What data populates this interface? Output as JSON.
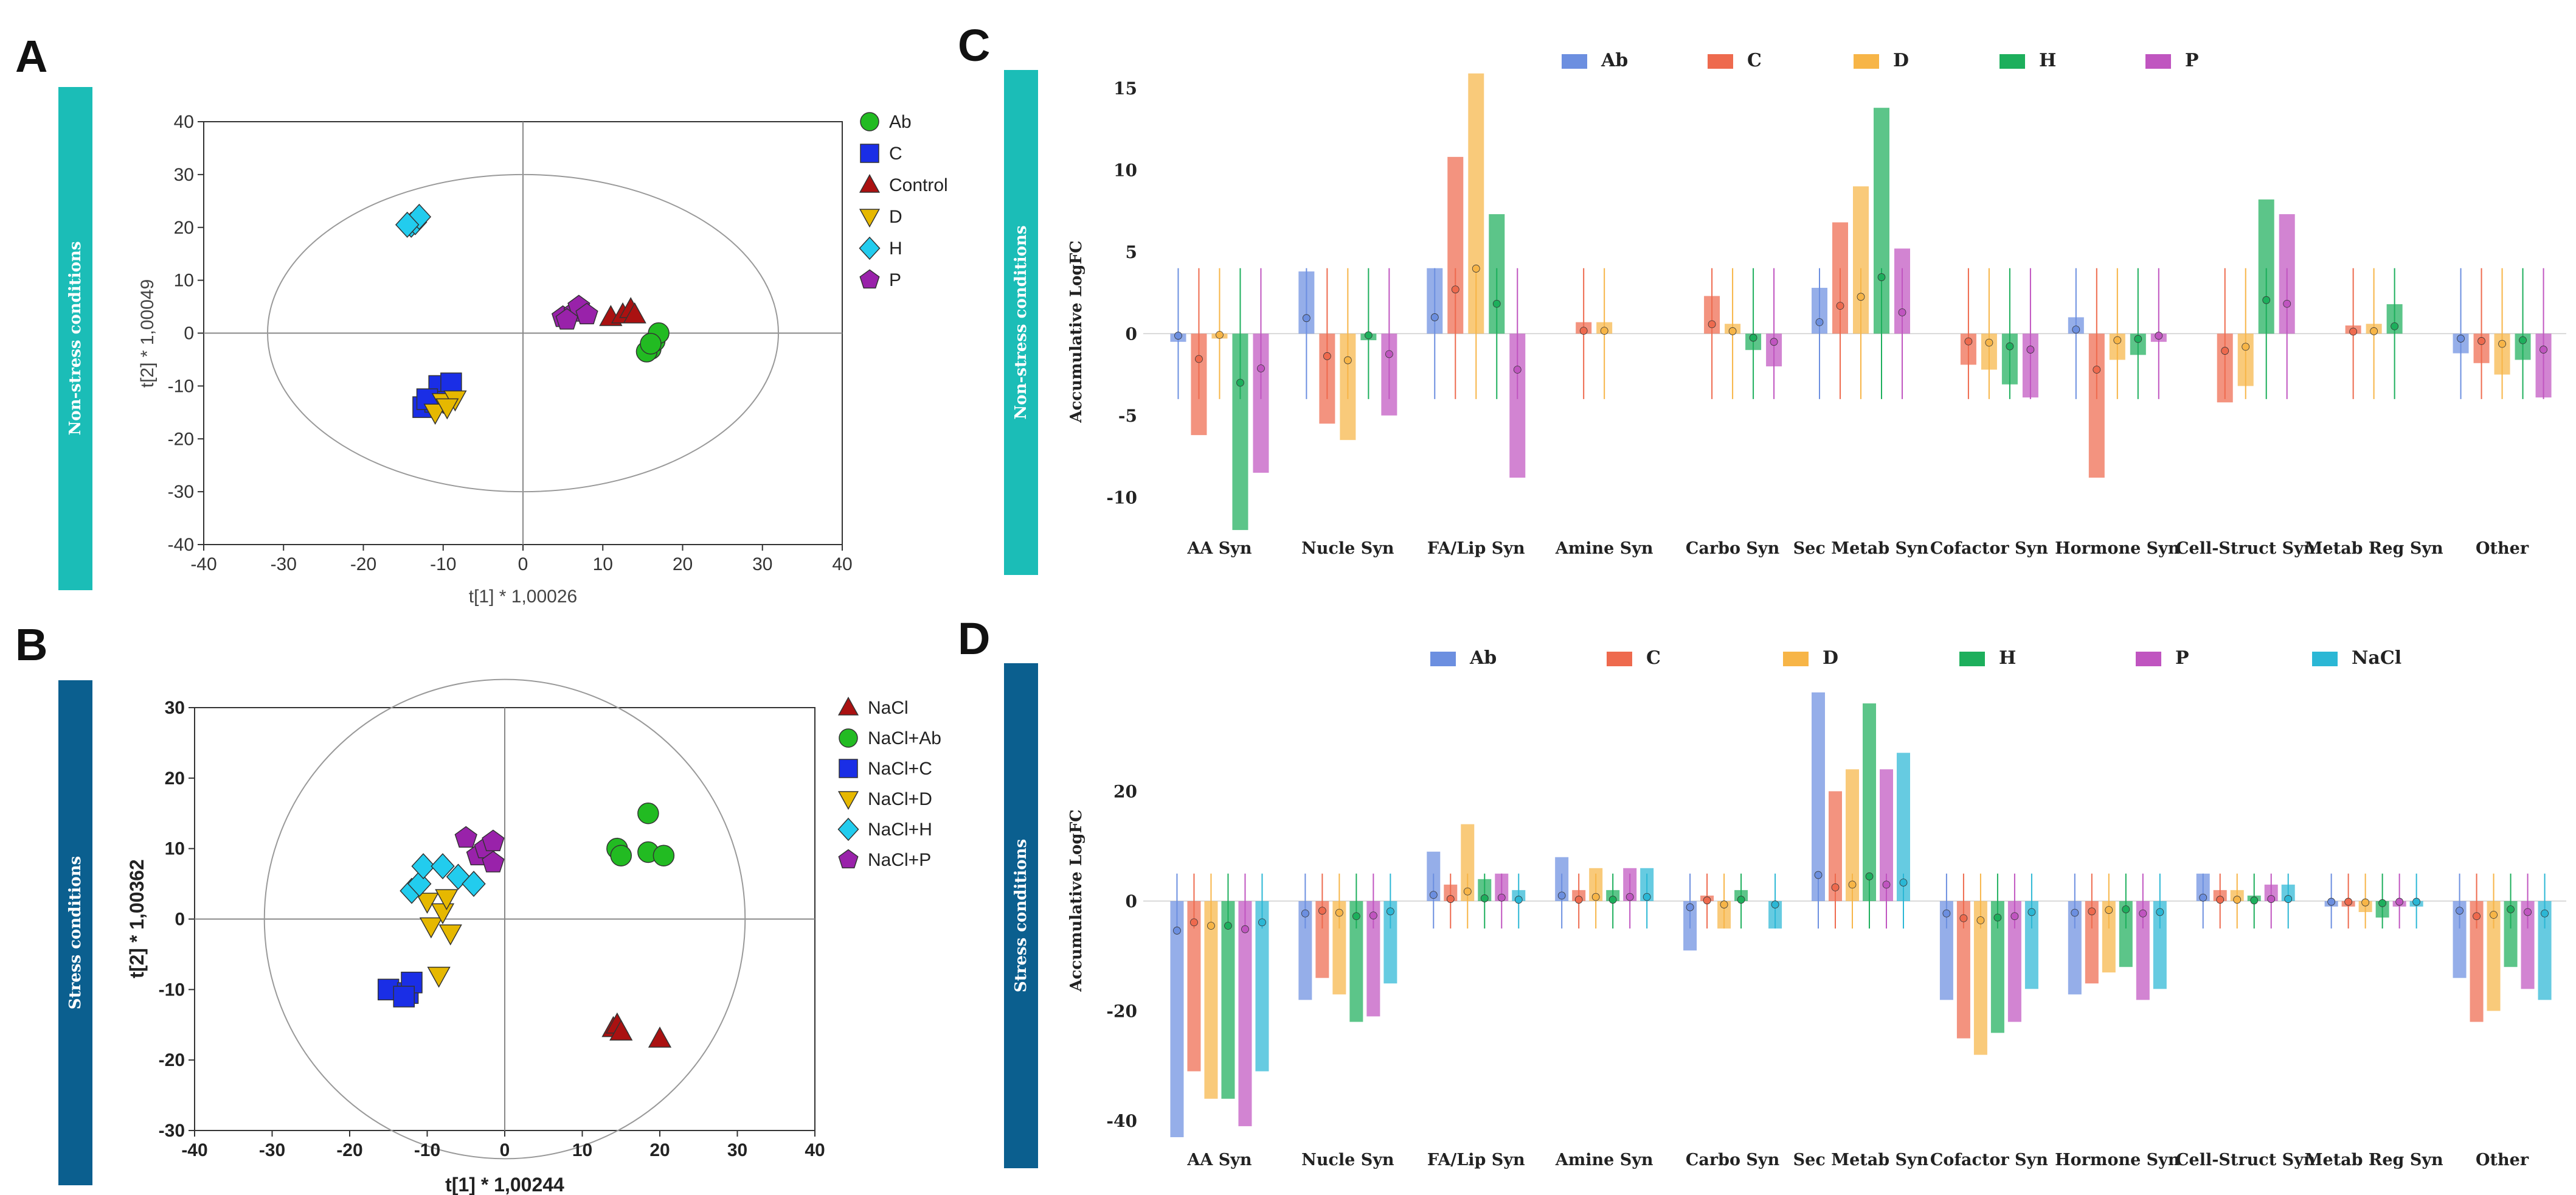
{
  "panels": {
    "A": {
      "letter": "A",
      "condition": "Non-stress conditions",
      "condition_color": "#1BBDB7",
      "xlabel": "t[1] * 1,00026",
      "ylabel": "t[2] * 1,00049",
      "xticks": [
        -40,
        -30,
        -20,
        -10,
        0,
        10,
        20,
        30,
        40
      ],
      "yticks": [
        -40,
        -30,
        -20,
        -10,
        0,
        10,
        20,
        30,
        40
      ],
      "ellipse": {
        "cx": 0,
        "cy": 0,
        "rx": 32,
        "ry": 30
      },
      "legend": [
        {
          "name": "Ab",
          "shape": "circle",
          "color": "#22BB22"
        },
        {
          "name": "C",
          "shape": "square",
          "color": "#1A2EE6"
        },
        {
          "name": "Control",
          "shape": "triangle",
          "color": "#AA1111"
        },
        {
          "name": "D",
          "shape": "triangle-down",
          "color": "#E6B800"
        },
        {
          "name": "H",
          "shape": "diamond",
          "color": "#22CCEE"
        },
        {
          "name": "P",
          "shape": "pentagon",
          "color": "#9922AA"
        }
      ],
      "chart_data": {
        "type": "scatter",
        "xlim": [
          -40,
          40
        ],
        "ylim": [
          -40,
          40
        ],
        "series": [
          {
            "name": "Ab",
            "points": [
              [
                16,
                -3
              ],
              [
                16.5,
                -1.5
              ],
              [
                17,
                0
              ],
              [
                15.5,
                -3.5
              ],
              [
                16,
                -2
              ]
            ]
          },
          {
            "name": "C",
            "points": [
              [
                -12.5,
                -14
              ],
              [
                -10.5,
                -10
              ],
              [
                -9,
                -9.5
              ],
              [
                -11,
                -13
              ],
              [
                -12,
                -12.5
              ]
            ]
          },
          {
            "name": "Control",
            "points": [
              [
                11,
                3
              ],
              [
                12.5,
                3.5
              ],
              [
                13.5,
                4.5
              ],
              [
                14,
                3.5
              ]
            ]
          },
          {
            "name": "D",
            "points": [
              [
                -10,
                -13
              ],
              [
                -11,
                -15
              ],
              [
                -8.5,
                -12.5
              ],
              [
                -9.5,
                -14
              ]
            ]
          },
          {
            "name": "H",
            "points": [
              [
                -14,
                20.5
              ],
              [
                -13.5,
                21
              ],
              [
                -13,
                22
              ],
              [
                -14.5,
                20.5
              ]
            ]
          },
          {
            "name": "P",
            "points": [
              [
                5,
                3
              ],
              [
                6.5,
                4
              ],
              [
                7,
                5
              ],
              [
                8,
                3.5
              ],
              [
                5.5,
                2.5
              ]
            ]
          }
        ]
      }
    },
    "B": {
      "letter": "B",
      "condition": "Stress conditions",
      "condition_color": "#0B5F8F",
      "xlabel": "t[1] * 1,00244",
      "ylabel": "t[2] * 1,00362",
      "xticks": [
        -40,
        -30,
        -20,
        -10,
        0,
        10,
        20,
        30,
        40
      ],
      "yticks": [
        -30,
        -20,
        -10,
        0,
        10,
        20,
        30
      ],
      "ellipse": {
        "cx": 0,
        "cy": 0,
        "rx": 31,
        "ry": 34
      },
      "legend": [
        {
          "name": "NaCl",
          "shape": "triangle",
          "color": "#AA1111"
        },
        {
          "name": "NaCl+Ab",
          "shape": "circle",
          "color": "#22BB22"
        },
        {
          "name": "NaCl+C",
          "shape": "square",
          "color": "#1A2EE6"
        },
        {
          "name": "NaCl+D",
          "shape": "triangle-down",
          "color": "#E6B800"
        },
        {
          "name": "NaCl+H",
          "shape": "diamond",
          "color": "#22CCEE"
        },
        {
          "name": "NaCl+P",
          "shape": "pentagon",
          "color": "#9922AA"
        }
      ],
      "chart_data": {
        "type": "scatter",
        "xlim": [
          -40,
          40
        ],
        "ylim": [
          -30,
          30
        ],
        "series": [
          {
            "name": "NaCl",
            "points": [
              [
                14,
                -15.5
              ],
              [
                14.5,
                -15
              ],
              [
                15,
                -16
              ],
              [
                20,
                -17
              ]
            ]
          },
          {
            "name": "NaCl+Ab",
            "points": [
              [
                14.5,
                10
              ],
              [
                15,
                9
              ],
              [
                18.5,
                15
              ],
              [
                18.5,
                9.5
              ],
              [
                20.5,
                9
              ]
            ]
          },
          {
            "name": "NaCl+C",
            "points": [
              [
                -15,
                -10
              ],
              [
                -12.5,
                -10.5
              ],
              [
                -12,
                -9
              ],
              [
                -13,
                -11
              ]
            ]
          },
          {
            "name": "NaCl+D",
            "points": [
              [
                -10,
                2.5
              ],
              [
                -9.5,
                -1
              ],
              [
                -8,
                1
              ],
              [
                -7.5,
                3
              ],
              [
                -7,
                -2
              ],
              [
                -8.5,
                -8
              ]
            ]
          },
          {
            "name": "NaCl+H",
            "points": [
              [
                -12,
                4
              ],
              [
                -11,
                5
              ],
              [
                -10.5,
                7.5
              ],
              [
                -8,
                7.5
              ],
              [
                -6,
                6
              ],
              [
                -4,
                5
              ]
            ]
          },
          {
            "name": "NaCl+P",
            "points": [
              [
                -5,
                11.5
              ],
              [
                -3.5,
                9
              ],
              [
                -2.5,
                10
              ],
              [
                -1.5,
                8
              ],
              [
                -1.5,
                11
              ]
            ]
          }
        ]
      }
    },
    "C": {
      "letter": "C",
      "condition": "Non-stress conditions",
      "condition_color": "#1BBDB7",
      "ylabel": "Accumulative LogFC",
      "yticks": [
        15,
        10,
        5,
        0,
        -5,
        -10
      ],
      "legend": [
        {
          "name": "Ab",
          "color": "#6C8FE0"
        },
        {
          "name": "C",
          "color": "#EE6A4E"
        },
        {
          "name": "D",
          "color": "#F7B547"
        },
        {
          "name": "H",
          "color": "#1DAF5C"
        },
        {
          "name": "P",
          "color": "#C055C0"
        }
      ],
      "chart_data": {
        "type": "bar",
        "ylim": [
          -13,
          16
        ],
        "categories": [
          "AA Syn",
          "Nucle Syn",
          "FA/Lip Syn",
          "Amine Syn",
          "Carbo Syn",
          "Sec Metab Syn",
          "Cofactor Syn",
          "Hormone Syn",
          "Cell-Struct Syn",
          "Metab Reg Syn",
          "Other"
        ],
        "series": [
          {
            "name": "Ab",
            "values": [
              -0.5,
              3.8,
              4.0,
              0,
              0,
              2.8,
              0,
              1.0,
              0,
              0,
              -1.2
            ]
          },
          {
            "name": "C",
            "values": [
              -6.2,
              -5.5,
              10.8,
              0.7,
              2.3,
              6.8,
              -1.9,
              -8.8,
              -4.2,
              0.5,
              -1.8
            ]
          },
          {
            "name": "D",
            "values": [
              -0.3,
              -6.5,
              15.9,
              0.7,
              0.6,
              9.0,
              -2.2,
              -1.6,
              -3.2,
              0.6,
              -2.5
            ]
          },
          {
            "name": "H",
            "values": [
              -12.0,
              -0.4,
              7.3,
              0,
              -1.0,
              13.8,
              -3.1,
              -1.3,
              8.2,
              1.8,
              -1.6
            ]
          },
          {
            "name": "P",
            "values": [
              -8.5,
              -5.0,
              -8.8,
              0,
              -2.0,
              5.2,
              -3.9,
              -0.5,
              7.3,
              0,
              -3.9
            ]
          }
        ]
      }
    },
    "D": {
      "letter": "D",
      "condition": "Stress conditions",
      "condition_color": "#0B5F8F",
      "ylabel": "Accumulative LogFC",
      "yticks": [
        20,
        0,
        -20,
        -40
      ],
      "legend": [
        {
          "name": "Ab",
          "color": "#6C8FE0"
        },
        {
          "name": "C",
          "color": "#EE6A4E"
        },
        {
          "name": "D",
          "color": "#F7B547"
        },
        {
          "name": "H",
          "color": "#1DAF5C"
        },
        {
          "name": "P",
          "color": "#C055C0"
        },
        {
          "name": "NaCl",
          "color": "#2BB7D5"
        }
      ],
      "chart_data": {
        "type": "bar",
        "ylim": [
          -44,
          38
        ],
        "categories": [
          "AA Syn",
          "Nucle Syn",
          "FA/Lip Syn",
          "Amine Syn",
          "Carbo Syn",
          "Sec Metab Syn",
          "Cofactor Syn",
          "Hormone Syn",
          "Cell-Struct Syn",
          "Metab Reg Syn",
          "Other"
        ],
        "series": [
          {
            "name": "Ab",
            "values": [
              -43,
              -18,
              9,
              8,
              -9,
              38,
              -18,
              -17,
              5,
              -1,
              -14
            ]
          },
          {
            "name": "C",
            "values": [
              -31,
              -14,
              3,
              2,
              1,
              20,
              -25,
              -15,
              2,
              -1,
              -22
            ]
          },
          {
            "name": "D",
            "values": [
              -36,
              -17,
              14,
              6,
              -5,
              24,
              -28,
              -13,
              2,
              -2,
              -20
            ]
          },
          {
            "name": "H",
            "values": [
              -36,
              -22,
              4,
              2,
              2,
              36,
              -24,
              -12,
              1,
              -3,
              -12
            ]
          },
          {
            "name": "P",
            "values": [
              -41,
              -21,
              5,
              6,
              0,
              24,
              -22,
              -18,
              3,
              -1,
              -16
            ]
          },
          {
            "name": "NaCl",
            "values": [
              -31,
              -15,
              2,
              6,
              -5,
              27,
              -16,
              -16,
              3,
              -1,
              -18
            ]
          }
        ]
      }
    }
  }
}
